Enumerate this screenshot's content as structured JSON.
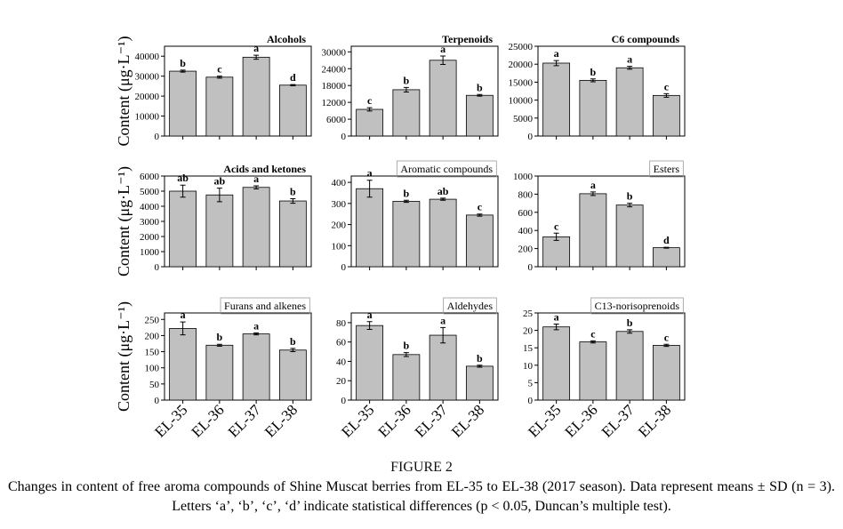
{
  "chart_data": [
    {
      "type": "bar",
      "title": "Alcohols",
      "ylabel": "Content (μg·L⁻¹)",
      "values": [
        32500,
        29500,
        39500,
        25500
      ],
      "errors": [
        500,
        500,
        1000,
        300
      ],
      "letters": [
        "b",
        "c",
        "a",
        "d"
      ],
      "ylim": [
        0,
        45000
      ],
      "yticks": [
        0,
        10000,
        20000,
        30000,
        40000
      ],
      "color": "#c0c0c0",
      "title_box": false
    },
    {
      "type": "bar",
      "title": "Terpenoids",
      "values": [
        9500,
        16500,
        27000,
        14500
      ],
      "errors": [
        600,
        800,
        1500,
        300
      ],
      "letters": [
        "c",
        "b",
        "a",
        "b"
      ],
      "ylim": [
        0,
        32000
      ],
      "yticks": [
        0,
        6000,
        12000,
        18000,
        24000,
        30000
      ],
      "color": "#c0c0c0",
      "title_box": false
    },
    {
      "type": "bar",
      "title": "C6 compounds",
      "values": [
        20300,
        15500,
        19000,
        11300
      ],
      "errors": [
        700,
        400,
        400,
        500
      ],
      "letters": [
        "a",
        "b",
        "a",
        "c"
      ],
      "ylim": [
        0,
        25000
      ],
      "yticks": [
        0,
        5000,
        10000,
        15000,
        20000,
        25000
      ],
      "color": "#c0c0c0",
      "title_box": false
    },
    {
      "type": "bar",
      "title": "Acids and ketones",
      "ylabel": "Content (μg·L⁻¹)",
      "values": [
        5000,
        4750,
        5250,
        4350
      ],
      "errors": [
        400,
        450,
        100,
        150
      ],
      "letters": [
        "ab",
        "ab",
        "a",
        "b"
      ],
      "ylim": [
        0,
        6000
      ],
      "yticks": [
        0,
        1000,
        2000,
        3000,
        4000,
        5000,
        6000
      ],
      "color": "#c0c0c0",
      "title_box": false
    },
    {
      "type": "bar",
      "title": "Aromatic compounds",
      "values": [
        370,
        310,
        320,
        245
      ],
      "errors": [
        40,
        5,
        5,
        5
      ],
      "letters": [
        "a",
        "b",
        "ab",
        "c"
      ],
      "ylim": [
        0,
        430
      ],
      "yticks": [
        0,
        100,
        200,
        300,
        400
      ],
      "color": "#c0c0c0",
      "title_box": true
    },
    {
      "type": "bar",
      "title": "Esters",
      "values": [
        330,
        805,
        680,
        210
      ],
      "errors": [
        40,
        20,
        20,
        5
      ],
      "letters": [
        "c",
        "a",
        "b",
        "d"
      ],
      "ylim": [
        0,
        1000
      ],
      "yticks": [
        0,
        200,
        400,
        600,
        800,
        1000
      ],
      "color": "#c0c0c0",
      "title_box": true
    },
    {
      "type": "bar",
      "title": "Furans and alkenes",
      "ylabel": "Content (μg·L⁻¹)",
      "categories": [
        "EL-35",
        "EL-36",
        "EL-37",
        "EL-38"
      ],
      "values": [
        222,
        170,
        205,
        155
      ],
      "errors": [
        20,
        3,
        3,
        5
      ],
      "letters": [
        "a",
        "b",
        "a",
        "b"
      ],
      "ylim": [
        0,
        270
      ],
      "yticks": [
        0,
        50,
        100,
        150,
        200,
        250
      ],
      "color": "#c0c0c0",
      "title_box": true
    },
    {
      "type": "bar",
      "title": "Aldehydes",
      "categories": [
        "EL-35",
        "EL-36",
        "EL-37",
        "EL-38"
      ],
      "values": [
        77,
        47,
        67,
        35
      ],
      "errors": [
        4,
        2,
        8,
        1
      ],
      "letters": [
        "a",
        "b",
        "a",
        "b"
      ],
      "ylim": [
        0,
        90
      ],
      "yticks": [
        0,
        20,
        40,
        60,
        80
      ],
      "color": "#c0c0c0",
      "title_box": true
    },
    {
      "type": "bar",
      "title": "C13-norisoprenoids",
      "categories": [
        "EL-35",
        "EL-36",
        "EL-37",
        "EL-38"
      ],
      "values": [
        21,
        16.7,
        19.7,
        15.7
      ],
      "errors": [
        0.8,
        0.3,
        0.5,
        0.3
      ],
      "letters": [
        "a",
        "c",
        "b",
        "c"
      ],
      "ylim": [
        0,
        25
      ],
      "yticks": [
        0,
        5,
        10,
        15,
        20,
        25
      ],
      "color": "#c0c0c0",
      "title_box": true
    }
  ],
  "figure": {
    "label": "FIGURE 2",
    "caption": "Changes in content of free aroma compounds of Shine Muscat berries from EL-35 to EL-38 (2017 season). Data represent means ± SD (n = 3). Letters ‘a’, ‘b’, ‘c’, ‘d’ indicate statistical differences (p < 0.05, Duncan’s multiple test)."
  }
}
